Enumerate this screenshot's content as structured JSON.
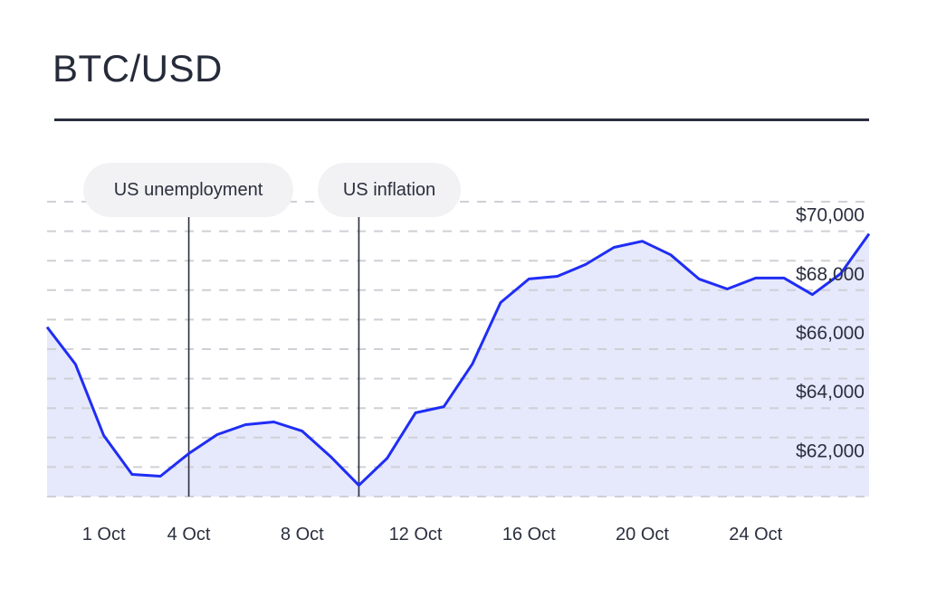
{
  "chart_data": {
    "type": "area",
    "title": "BTC/USD",
    "x": [
      "29 Sep",
      "30 Sep",
      "1 Oct",
      "2 Oct",
      "3 Oct",
      "4 Oct",
      "5 Oct",
      "6 Oct",
      "7 Oct",
      "8 Oct",
      "9 Oct",
      "10 Oct",
      "11 Oct",
      "12 Oct",
      "13 Oct",
      "14 Oct",
      "15 Oct",
      "16 Oct",
      "17 Oct",
      "18 Oct",
      "19 Oct",
      "20 Oct",
      "21 Oct",
      "22 Oct",
      "23 Oct",
      "24 Oct",
      "25 Oct",
      "26 Oct",
      "27 Oct",
      "28 Oct"
    ],
    "values": [
      66750,
      65490,
      63070,
      61750,
      61690,
      62460,
      63100,
      63440,
      63530,
      63220,
      62360,
      61380,
      62300,
      63840,
      64050,
      65490,
      67580,
      68380,
      68470,
      68870,
      69450,
      69660,
      69200,
      68380,
      68040,
      68410,
      68410,
      67850,
      68560,
      69910
    ],
    "x_ticks": [
      "1 Oct",
      "4 Oct",
      "8 Oct",
      "12 Oct",
      "16 Oct",
      "20 Oct",
      "24 Oct"
    ],
    "y_ticks": [
      {
        "value": 70000,
        "label": "$70,000"
      },
      {
        "value": 68000,
        "label": "$68,000"
      },
      {
        "value": 66000,
        "label": "$66,000"
      },
      {
        "value": 64000,
        "label": "$64,000"
      },
      {
        "value": 62000,
        "label": "$62,000"
      }
    ],
    "ylim": [
      61000,
      71000
    ],
    "y_axis_position": "right",
    "grid": "horizontal dashed, every 1000",
    "annotations": [
      {
        "date": "4 Oct",
        "label": "US unemployment"
      },
      {
        "date": "10 Oct",
        "label": "US inflation"
      }
    ],
    "colors": {
      "line": "#1f2df5",
      "fill": "#e6e8fb",
      "grid": "#cfd0d6",
      "text": "#2a2f3e",
      "annotation_bg": "#f2f2f4"
    }
  }
}
